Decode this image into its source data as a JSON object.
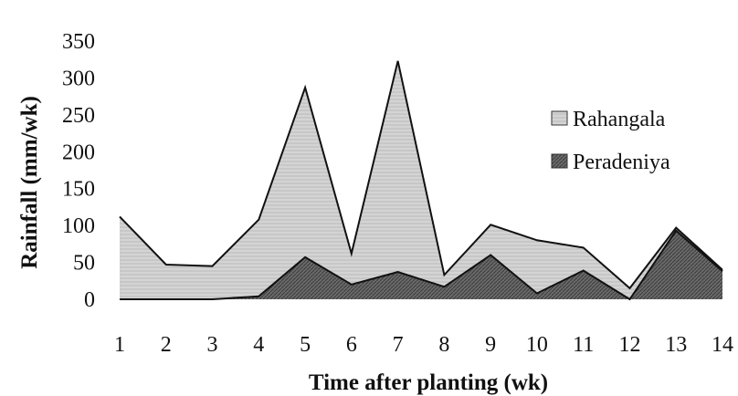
{
  "chart_data": {
    "type": "area",
    "xlabel": "Time after planting (wk)",
    "ylabel": "Rainfall (mm/wk)",
    "x": [
      1,
      2,
      3,
      4,
      5,
      6,
      7,
      8,
      9,
      10,
      11,
      12,
      13,
      14
    ],
    "ylim": [
      0,
      350
    ],
    "yticks": [
      "0",
      "50",
      "100",
      "150",
      "200",
      "250",
      "300",
      "350"
    ],
    "xticks": [
      "1",
      "2",
      "3",
      "4",
      "5",
      "6",
      "7",
      "8",
      "9",
      "10",
      "11",
      "12",
      "13",
      "14"
    ],
    "grid": false,
    "legend_position": "right",
    "series": [
      {
        "name": "Rahangala",
        "values": [
          112,
          47,
          45,
          108,
          287,
          62,
          323,
          33,
          101,
          80,
          70,
          15,
          97,
          40
        ],
        "color": "#d9d9d9"
      },
      {
        "name": "Peradeniya",
        "values": [
          0,
          0,
          0,
          4,
          57,
          20,
          37,
          17,
          60,
          8,
          39,
          0,
          93,
          38
        ],
        "color": "#6e6e6e"
      }
    ]
  }
}
